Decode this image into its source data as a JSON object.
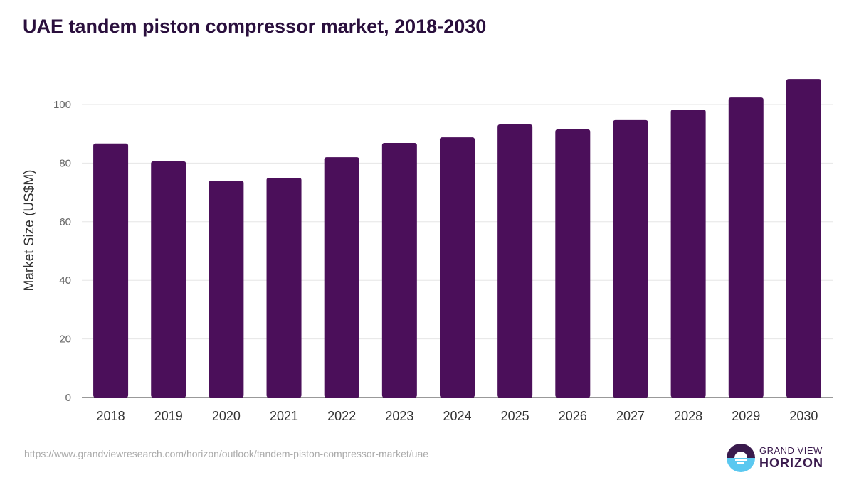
{
  "chart_data": {
    "type": "bar",
    "title": "UAE tandem piston compressor market, 2018-2030",
    "xlabel": "",
    "ylabel": "Market Size (US$M)",
    "ylim": [
      0,
      110
    ],
    "yticks": [
      0,
      20,
      40,
      60,
      80,
      100
    ],
    "grid": true,
    "categories": [
      "2018",
      "2019",
      "2020",
      "2021",
      "2022",
      "2023",
      "2024",
      "2025",
      "2026",
      "2027",
      "2028",
      "2029",
      "2030"
    ],
    "values": [
      86.7,
      80.6,
      74.0,
      75.0,
      82.0,
      86.9,
      88.8,
      93.2,
      91.5,
      94.7,
      98.3,
      102.4,
      108.7
    ],
    "bar_color": "#4b0f5a"
  },
  "source": "https://www.grandviewresearch.com/horizon/outlook/tandem-piston-compressor-market/uae",
  "logo": {
    "line1": "GRAND VIEW",
    "line2": "HORIZON"
  }
}
